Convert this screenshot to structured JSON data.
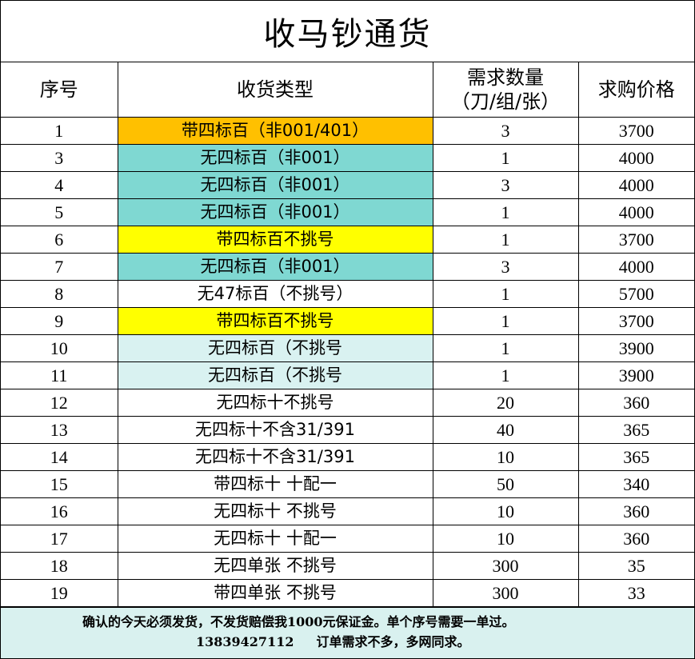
{
  "title": "收马钞通货",
  "headers": {
    "seq": "序号",
    "type": "收货类型",
    "qty_line1": "需求数量",
    "qty_line2": "（刀/组/张）",
    "price": "求购价格"
  },
  "colors": {
    "orange": "#ffc000",
    "teal": "#7fd8d2",
    "yellow": "#ffff00",
    "light_teal": "#d9f2f1",
    "white": "#ffffff",
    "footer_bg": "#d9f1ef"
  },
  "rows": [
    {
      "seq": "1",
      "type": "带四标百（非001/401）",
      "qty": "3",
      "price": "3700",
      "highlight": "orange"
    },
    {
      "seq": "3",
      "type": "无四标百（非001）",
      "qty": "1",
      "price": "4000",
      "highlight": "teal"
    },
    {
      "seq": "4",
      "type": "无四标百（非001）",
      "qty": "3",
      "price": "4000",
      "highlight": "teal"
    },
    {
      "seq": "5",
      "type": "无四标百（非001）",
      "qty": "1",
      "price": "4000",
      "highlight": "teal"
    },
    {
      "seq": "6",
      "type": "带四标百不挑号",
      "qty": "1",
      "price": "3700",
      "highlight": "yellow"
    },
    {
      "seq": "7",
      "type": "无四标百（非001）",
      "qty": "3",
      "price": "4000",
      "highlight": "teal"
    },
    {
      "seq": "8",
      "type": "无47标百（不挑号）",
      "qty": "1",
      "price": "5700",
      "highlight": "white"
    },
    {
      "seq": "9",
      "type": "带四标百不挑号",
      "qty": "1",
      "price": "3700",
      "highlight": "yellow"
    },
    {
      "seq": "10",
      "type": "无四标百（不挑号",
      "qty": "1",
      "price": "3900",
      "highlight": "light_teal"
    },
    {
      "seq": "11",
      "type": "无四标百（不挑号",
      "qty": "1",
      "price": "3900",
      "highlight": "light_teal"
    },
    {
      "seq": "12",
      "type": "无四标十不挑号",
      "qty": "20",
      "price": "360",
      "highlight": "white"
    },
    {
      "seq": "13",
      "type": "无四标十不含31/391",
      "qty": "40",
      "price": "365",
      "highlight": "white"
    },
    {
      "seq": "14",
      "type": "无四标十不含31/391",
      "qty": "10",
      "price": "365",
      "highlight": "white"
    },
    {
      "seq": "15",
      "type": "带四标十 十配一",
      "qty": "50",
      "price": "340",
      "highlight": "white"
    },
    {
      "seq": "16",
      "type": "无四标十 不挑号",
      "qty": "10",
      "price": "360",
      "highlight": "white"
    },
    {
      "seq": "17",
      "type": "无四标十 十配一",
      "qty": "10",
      "price": "360",
      "highlight": "white"
    },
    {
      "seq": "18",
      "type": "无四单张 不挑号",
      "qty": "300",
      "price": "35",
      "highlight": "white"
    },
    {
      "seq": "19",
      "type": "带四单张 不挑号",
      "qty": "300",
      "price": "33",
      "highlight": "white"
    }
  ],
  "footer": {
    "line1": "确认的今天必须发货，不发货赔偿我1000元保证金。单个序号需要一单过。",
    "phone": "13839427112",
    "line2": "订单需求不多，多网同求。"
  }
}
